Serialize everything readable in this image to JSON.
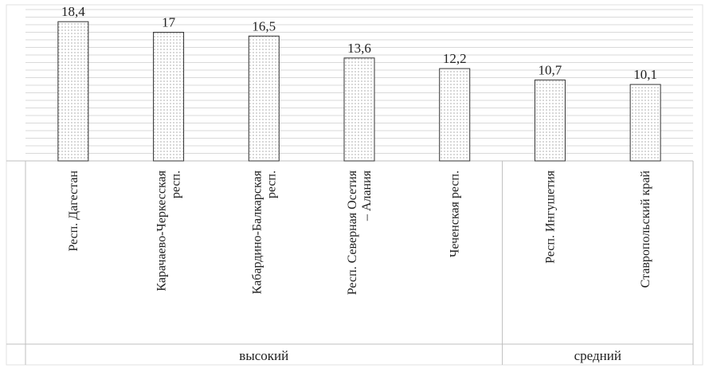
{
  "chart_data": {
    "type": "bar",
    "categories": [
      "Респ. Дагестан",
      "Карачаево-Черкесская респ.",
      "Кабардино-Балкарская респ.",
      "Респ. Северная Осетия – Алания",
      "Чеченская респ.",
      "Респ. Ингушетия",
      "Ставропольский край"
    ],
    "category_lines": [
      [
        "Респ. Дагестан"
      ],
      [
        "Карачаево-Черкесская",
        "респ."
      ],
      [
        "Кабардино-Балкарская",
        "респ."
      ],
      [
        "Респ. Северная Осетия",
        "– Алания"
      ],
      [
        "Чеченская респ."
      ],
      [
        "Респ. Ингушетия"
      ],
      [
        "Ставропольский край"
      ]
    ],
    "values": [
      18.4,
      17,
      16.5,
      13.6,
      12.2,
      10.7,
      10.1
    ],
    "data_labels": [
      "18,4",
      "17",
      "16,5",
      "13,6",
      "12,2",
      "10,7",
      "10,1"
    ],
    "groups": [
      {
        "label": "высокий",
        "count": 5
      },
      {
        "label": "средний",
        "count": 2
      }
    ],
    "ylim": [
      0,
      20
    ],
    "grid": true,
    "bar_pattern": "dotted",
    "colors": {
      "bar_fill": "#ffffff",
      "bar_dots": "#444444",
      "bar_stroke": "#333333",
      "grid": "#d9d9d9",
      "axis": "#bfbfbf"
    }
  }
}
